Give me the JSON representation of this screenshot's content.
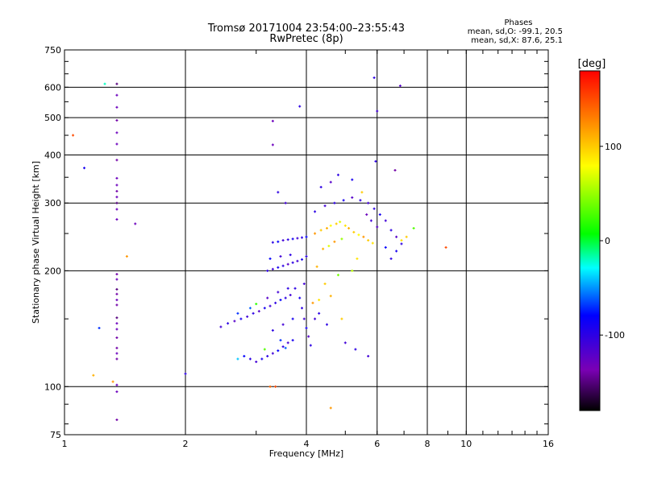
{
  "chart_data": {
    "type": "scatter",
    "title_line1": "Tromsø 20171004 23:54:00–23:55:43",
    "title_line2": "RwPretec (8p)",
    "stats": {
      "heading": "Phases",
      "line1": "mean, sd,O: -99.1, 20.5",
      "line2": "mean, sd,X:  87.6, 25.1"
    },
    "xlabel": "Frequency [MHz]",
    "ylabel": "Stationary phase Virtual Height [km]",
    "x_scale": "log",
    "y_scale": "log",
    "xlim": [
      1,
      16
    ],
    "ylim": [
      75,
      750
    ],
    "x_ticks": [
      1,
      2,
      4,
      6,
      8,
      10,
      16
    ],
    "x_tick_labels": [
      "1",
      "2",
      "4",
      "6",
      "8",
      "10",
      "16"
    ],
    "y_ticks": [
      75,
      100,
      200,
      300,
      400,
      500,
      600,
      750
    ],
    "y_tick_labels": [
      "75",
      "100",
      "200",
      "300",
      "400",
      "500",
      "600",
      "750"
    ],
    "grid": true,
    "colorbar": {
      "label": "[deg]",
      "range": [
        -180,
        180
      ],
      "ticks": [
        100,
        0,
        -100
      ],
      "tick_labels": [
        "100",
        "0",
        "-100"
      ]
    },
    "points": [
      [
        1.05,
        450,
        150
      ],
      [
        1.12,
        370,
        -90
      ],
      [
        1.18,
        107,
        110
      ],
      [
        1.26,
        612,
        -20
      ],
      [
        1.32,
        103,
        120
      ],
      [
        1.5,
        265,
        -130
      ],
      [
        1.43,
        218,
        120
      ],
      [
        1.22,
        142,
        -70
      ],
      [
        2.0,
        108,
        -100
      ],
      [
        1.35,
        82,
        -140
      ],
      [
        1.35,
        97,
        -130
      ],
      [
        1.35,
        101,
        -130
      ],
      [
        1.35,
        612,
        -150
      ],
      [
        1.35,
        572,
        -130
      ],
      [
        1.35,
        532,
        -130
      ],
      [
        1.35,
        492,
        -140
      ],
      [
        1.35,
        457,
        -130
      ],
      [
        1.35,
        427,
        -130
      ],
      [
        1.35,
        388,
        -140
      ],
      [
        1.35,
        348,
        -130
      ],
      [
        1.35,
        334,
        -130
      ],
      [
        1.35,
        322,
        -140
      ],
      [
        1.35,
        311,
        -130
      ],
      [
        1.35,
        300,
        -150
      ],
      [
        1.35,
        289,
        -130
      ],
      [
        1.35,
        272,
        -130
      ],
      [
        1.35,
        196,
        -140
      ],
      [
        1.35,
        190,
        -130
      ],
      [
        1.35,
        179,
        -150
      ],
      [
        1.35,
        174,
        -140
      ],
      [
        1.35,
        168,
        -130
      ],
      [
        1.35,
        163,
        -140
      ],
      [
        1.35,
        151,
        -150
      ],
      [
        1.35,
        146,
        -130
      ],
      [
        1.35,
        141,
        -130
      ],
      [
        1.35,
        134,
        -140
      ],
      [
        1.35,
        126,
        -140
      ],
      [
        1.35,
        122,
        -130
      ],
      [
        1.35,
        118,
        -140
      ],
      [
        3.3,
        490,
        -130
      ],
      [
        3.3,
        425,
        -130
      ],
      [
        3.85,
        535,
        -100
      ],
      [
        5.9,
        635,
        -100
      ],
      [
        6.85,
        605,
        -120
      ],
      [
        6.0,
        520,
        -110
      ],
      [
        6.65,
        365,
        -140
      ],
      [
        5.95,
        385,
        -100
      ],
      [
        4.6,
        88,
        120
      ],
      [
        3.25,
        100,
        140
      ],
      [
        3.35,
        100,
        150
      ],
      [
        8.9,
        230,
        150
      ],
      [
        7.4,
        258,
        30
      ],
      [
        2.45,
        143,
        -110
      ],
      [
        2.55,
        146,
        -100
      ],
      [
        2.65,
        148,
        -120
      ],
      [
        2.75,
        150,
        -90
      ],
      [
        2.85,
        152,
        -110
      ],
      [
        2.95,
        155,
        -100
      ],
      [
        3.05,
        157,
        -120
      ],
      [
        3.15,
        160,
        -90
      ],
      [
        3.25,
        162,
        -110
      ],
      [
        3.35,
        165,
        -100
      ],
      [
        3.45,
        168,
        -80
      ],
      [
        3.55,
        170,
        -100
      ],
      [
        3.65,
        173,
        -110
      ],
      [
        2.7,
        155,
        -70
      ],
      [
        2.9,
        160,
        -60
      ],
      [
        3.0,
        164,
        20
      ],
      [
        3.2,
        170,
        -120
      ],
      [
        3.4,
        176,
        -110
      ],
      [
        3.6,
        180,
        -100
      ],
      [
        2.8,
        120,
        -80
      ],
      [
        2.9,
        118,
        -100
      ],
      [
        3.0,
        116,
        -110
      ],
      [
        3.1,
        118,
        -90
      ],
      [
        3.2,
        120,
        -100
      ],
      [
        3.3,
        122,
        -110
      ],
      [
        3.4,
        124,
        -80
      ],
      [
        3.5,
        127,
        -100
      ],
      [
        3.6,
        130,
        -110
      ],
      [
        3.7,
        132,
        -90
      ],
      [
        2.7,
        118,
        -40
      ],
      [
        3.15,
        125,
        30
      ],
      [
        3.45,
        132,
        -70
      ],
      [
        3.55,
        126,
        -60
      ],
      [
        3.2,
        200,
        -100
      ],
      [
        3.3,
        202,
        -110
      ],
      [
        3.4,
        204,
        -90
      ],
      [
        3.5,
        206,
        -100
      ],
      [
        3.6,
        208,
        -120
      ],
      [
        3.7,
        210,
        -100
      ],
      [
        3.8,
        212,
        -110
      ],
      [
        3.9,
        214,
        -90
      ],
      [
        4.0,
        218,
        -100
      ],
      [
        3.25,
        215,
        -80
      ],
      [
        3.45,
        218,
        -110
      ],
      [
        3.65,
        220,
        -100
      ],
      [
        3.3,
        237,
        -100
      ],
      [
        3.4,
        238,
        -80
      ],
      [
        3.5,
        240,
        -110
      ],
      [
        3.6,
        241,
        -100
      ],
      [
        3.7,
        242,
        -90
      ],
      [
        3.8,
        243,
        -110
      ],
      [
        3.9,
        244,
        -100
      ],
      [
        4.0,
        245,
        -80
      ],
      [
        4.2,
        250,
        120
      ],
      [
        4.35,
        255,
        100
      ],
      [
        4.5,
        258,
        110
      ],
      [
        4.6,
        262,
        80
      ],
      [
        4.75,
        265,
        100
      ],
      [
        4.85,
        268,
        70
      ],
      [
        5.0,
        262,
        90
      ],
      [
        5.1,
        258,
        110
      ],
      [
        5.25,
        252,
        100
      ],
      [
        5.4,
        248,
        80
      ],
      [
        5.55,
        245,
        120
      ],
      [
        5.7,
        240,
        100
      ],
      [
        5.85,
        236,
        90
      ],
      [
        4.4,
        228,
        110
      ],
      [
        4.55,
        232,
        70
      ],
      [
        4.7,
        238,
        120
      ],
      [
        4.9,
        242,
        50
      ],
      [
        5.2,
        200,
        60
      ],
      [
        5.35,
        215,
        90
      ],
      [
        4.8,
        195,
        40
      ],
      [
        4.25,
        205,
        110
      ],
      [
        4.45,
        185,
        100
      ],
      [
        4.15,
        165,
        120
      ],
      [
        4.3,
        168,
        90
      ],
      [
        4.6,
        172,
        110
      ],
      [
        4.9,
        150,
        100
      ],
      [
        4.2,
        285,
        -100
      ],
      [
        4.45,
        295,
        -110
      ],
      [
        4.7,
        300,
        -100
      ],
      [
        4.95,
        305,
        -90
      ],
      [
        5.2,
        310,
        -120
      ],
      [
        5.45,
        305,
        -100
      ],
      [
        5.7,
        300,
        -110
      ],
      [
        5.9,
        290,
        -100
      ],
      [
        6.1,
        280,
        -90
      ],
      [
        6.3,
        270,
        -110
      ],
      [
        6.5,
        255,
        -100
      ],
      [
        6.7,
        245,
        -120
      ],
      [
        6.9,
        235,
        -100
      ],
      [
        5.65,
        280,
        -130
      ],
      [
        5.8,
        270,
        -110
      ],
      [
        6.0,
        260,
        -120
      ],
      [
        4.8,
        355,
        -100
      ],
      [
        4.6,
        340,
        -120
      ],
      [
        4.35,
        330,
        -100
      ],
      [
        5.2,
        345,
        -90
      ],
      [
        5.5,
        320,
        100
      ],
      [
        3.4,
        320,
        -100
      ],
      [
        3.55,
        300,
        -110
      ],
      [
        6.3,
        230,
        -80
      ],
      [
        6.5,
        215,
        -100
      ],
      [
        6.7,
        225,
        -90
      ],
      [
        6.9,
        240,
        90
      ],
      [
        7.1,
        245,
        100
      ],
      [
        3.9,
        160,
        -100
      ],
      [
        3.95,
        150,
        -110
      ],
      [
        4.0,
        142,
        -90
      ],
      [
        4.05,
        135,
        -120
      ],
      [
        4.1,
        128,
        -100
      ],
      [
        4.2,
        150,
        -110
      ],
      [
        4.3,
        155,
        -100
      ],
      [
        3.85,
        170,
        -90
      ],
      [
        3.75,
        180,
        -100
      ],
      [
        3.95,
        185,
        -110
      ],
      [
        3.3,
        140,
        -100
      ],
      [
        3.5,
        145,
        -110
      ],
      [
        3.7,
        150,
        -90
      ],
      [
        4.5,
        145,
        -100
      ],
      [
        5.0,
        130,
        -110
      ],
      [
        5.3,
        125,
        -100
      ],
      [
        5.7,
        120,
        -110
      ]
    ]
  }
}
